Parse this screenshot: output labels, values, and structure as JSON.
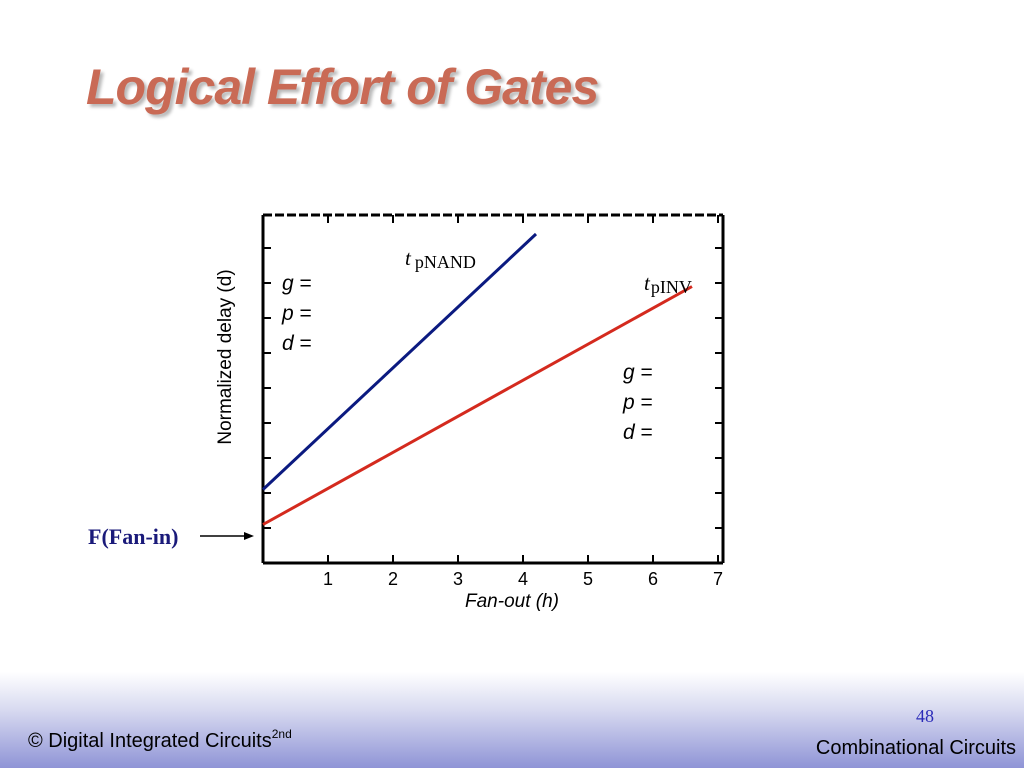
{
  "slide": {
    "title": "Logical Effort of Gates",
    "footer_left": "© Digital Integrated Circuits",
    "footer_left_sup": "2nd",
    "page_number": "48",
    "footer_right": "Combinational Circuits"
  },
  "chart_data": {
    "type": "line",
    "ylabel": "Normalized delay (d)",
    "xlabel": "Fan-out (h)",
    "xticks": [
      "1",
      "2",
      "3",
      "4",
      "5",
      "6",
      "7"
    ],
    "series": [
      {
        "name": "pNAND",
        "color": "#0b1a80",
        "x": [
          0,
          4.2
        ],
        "y": [
          2.1,
          9.4
        ]
      },
      {
        "name": "pINV",
        "color": "#d42a1e",
        "x": [
          0,
          6.6
        ],
        "y": [
          1.1,
          7.9
        ]
      }
    ],
    "labels": {
      "nand_t": "t",
      "nand_sub": "pNAND",
      "inv_t": "t",
      "inv_sub": "pINV",
      "nand_params": [
        {
          "sym": "g",
          "eq": " ="
        },
        {
          "sym": "p",
          "eq": " ="
        },
        {
          "sym": "d",
          "eq": " ="
        }
      ],
      "inv_params": [
        {
          "sym": "g",
          "eq": " ="
        },
        {
          "sym": "p",
          "eq": " ="
        },
        {
          "sym": "d",
          "eq": " ="
        }
      ],
      "annotation": "F(Fan-in)"
    }
  }
}
